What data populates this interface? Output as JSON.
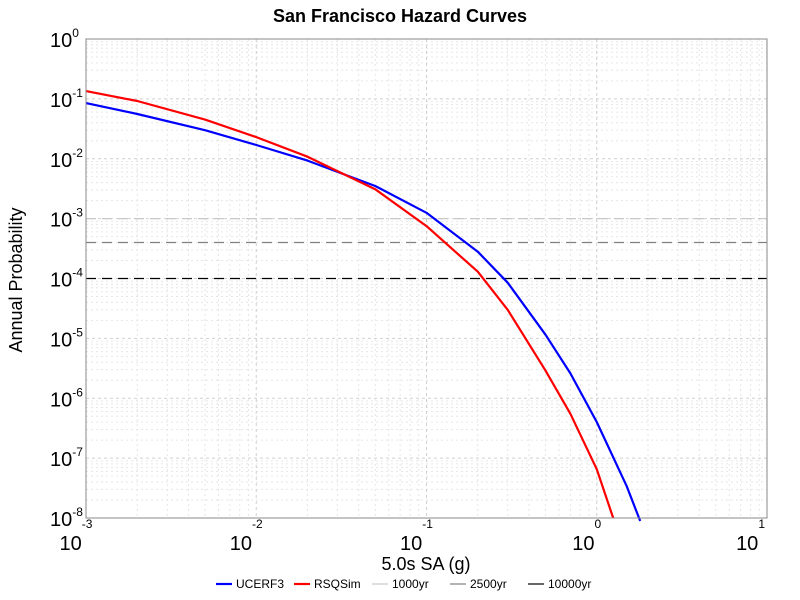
{
  "chart_data": {
    "type": "line",
    "title": "San Francisco Hazard Curves",
    "xlabel": "5.0s SA (g)",
    "ylabel": "Annual Probability",
    "xscale": "log",
    "yscale": "log",
    "xlim": [
      0.001,
      10
    ],
    "ylim": [
      1e-08,
      1
    ],
    "grid": true,
    "legend_position": "bottom-center",
    "x_ticks": [
      {
        "base": "10",
        "exp": "-3"
      },
      {
        "base": "10",
        "exp": "-2"
      },
      {
        "base": "10",
        "exp": "-1"
      },
      {
        "base": "10",
        "exp": "0"
      },
      {
        "base": "10",
        "exp": "1"
      }
    ],
    "y_ticks": [
      {
        "base": "10",
        "exp": "0"
      },
      {
        "base": "10",
        "exp": "-1"
      },
      {
        "base": "10",
        "exp": "-2"
      },
      {
        "base": "10",
        "exp": "-3"
      },
      {
        "base": "10",
        "exp": "-4"
      },
      {
        "base": "10",
        "exp": "-5"
      },
      {
        "base": "10",
        "exp": "-6"
      },
      {
        "base": "10",
        "exp": "-7"
      },
      {
        "base": "10",
        "exp": "-8"
      }
    ],
    "series": [
      {
        "name": "UCERF3",
        "color": "#0000ff",
        "style": "solid",
        "x": [
          0.001,
          0.002,
          0.005,
          0.01,
          0.02,
          0.05,
          0.1,
          0.2,
          0.3,
          0.5,
          0.7,
          1.0,
          1.5,
          1.8
        ],
        "y": [
          0.085,
          0.056,
          0.03,
          0.017,
          0.0093,
          0.0035,
          0.00125,
          0.00028,
          8.5e-05,
          1.15e-05,
          2.6e-06,
          4e-07,
          3.4e-08,
          8.9e-09
        ]
      },
      {
        "name": "RSQSim",
        "color": "#ff0000",
        "style": "solid",
        "x": [
          0.001,
          0.002,
          0.005,
          0.01,
          0.02,
          0.05,
          0.1,
          0.2,
          0.3,
          0.5,
          0.7,
          1.0,
          1.25
        ],
        "y": [
          0.135,
          0.092,
          0.045,
          0.023,
          0.0108,
          0.0031,
          0.00075,
          0.00013,
          3e-05,
          2.9e-06,
          5.5e-07,
          6.5e-08,
          1e-08
        ]
      },
      {
        "name": "1000yr",
        "color": "#c8c8c8",
        "style": "dashed",
        "x": [
          0.001,
          10
        ],
        "y": [
          0.001,
          0.001
        ]
      },
      {
        "name": "2500yr",
        "color": "#808080",
        "style": "dashed",
        "x": [
          0.001,
          10
        ],
        "y": [
          0.0004,
          0.0004
        ]
      },
      {
        "name": "10000yr",
        "color": "#000000",
        "style": "dashed",
        "x": [
          0.001,
          10
        ],
        "y": [
          0.0001,
          0.0001
        ]
      }
    ]
  }
}
